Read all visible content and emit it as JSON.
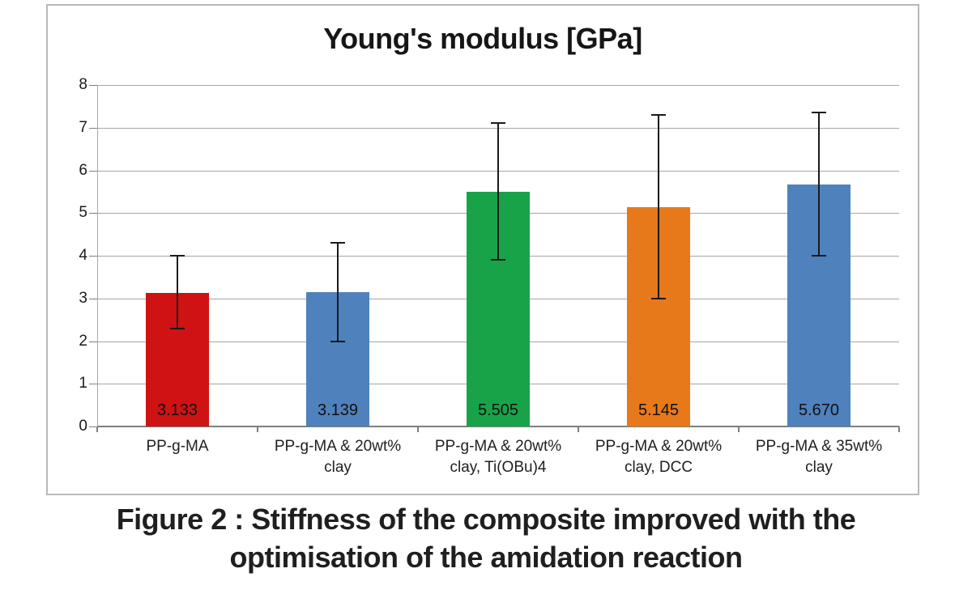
{
  "figure": {
    "caption_line1": "Figure 2 : Stiffness of the composite improved with the",
    "caption_line2": "optimisation of the amidation reaction"
  },
  "chart_data": {
    "type": "bar",
    "title": "Young's modulus [GPa]",
    "categories": [
      "PP-g-MA",
      "PP-g-MA & 20wt% clay",
      "PP-g-MA & 20wt% clay, Ti(OBu)4",
      "PP-g-MA & 20wt% clay, DCC",
      "PP-g-MA & 35wt% clay"
    ],
    "category_lines": [
      [
        "PP-g-MA",
        ""
      ],
      [
        "PP-g-MA & 20wt%",
        "clay"
      ],
      [
        "PP-g-MA & 20wt%",
        "clay, Ti(OBu)4"
      ],
      [
        "PP-g-MA & 20wt%",
        "clay, DCC"
      ],
      [
        "PP-g-MA & 35wt%",
        "clay"
      ]
    ],
    "values": [
      3.133,
      3.139,
      5.505,
      5.145,
      5.67
    ],
    "value_labels": [
      "3.133",
      "3.139",
      "5.505",
      "5.145",
      "5.670"
    ],
    "error_bars": {
      "low": [
        2.3,
        2.0,
        3.9,
        3.0,
        4.0
      ],
      "high": [
        4.0,
        4.3,
        7.1,
        7.3,
        7.35
      ]
    },
    "bar_colors": [
      "#cf1212",
      "#4f81bd",
      "#18a349",
      "#e8791a",
      "#4f81bd"
    ],
    "ylim": [
      0,
      8
    ],
    "yticks": [
      0,
      1,
      2,
      3,
      4,
      5,
      6,
      7,
      8
    ],
    "xlabel": "",
    "ylabel": "",
    "grid": true,
    "legend": "none",
    "styles": {
      "gridline_color": "#a6a6a6",
      "axis_color": "#7f7f7f",
      "frame_border_color": "#b9b9b9",
      "text_color": "#1a1a1a",
      "error_bar_color": "#1a1a1a"
    }
  }
}
